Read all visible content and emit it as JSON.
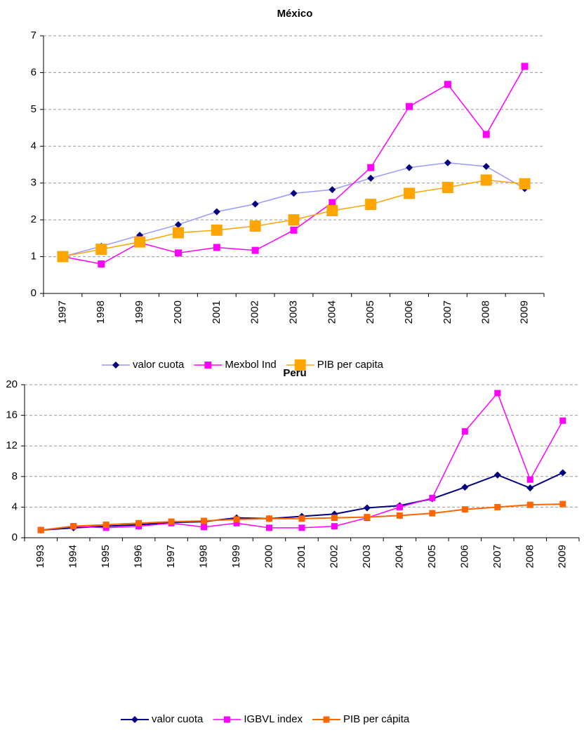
{
  "chart_data": [
    {
      "type": "line",
      "title": "México",
      "categories": [
        "1997",
        "1998",
        "1999",
        "2000",
        "2001",
        "2002",
        "2003",
        "2004",
        "2005",
        "2006",
        "2007",
        "2008",
        "2009"
      ],
      "series": [
        {
          "name": "valor cuota",
          "color": "#9999ff",
          "marker_color": "#000080",
          "marker": "diamond",
          "values": [
            1.0,
            1.28,
            1.58,
            1.87,
            2.22,
            2.43,
            2.72,
            2.82,
            3.13,
            3.42,
            3.55,
            3.45,
            2.85
          ]
        },
        {
          "name": "Mexbol Ind",
          "color": "#ff00ff",
          "marker_color": "#ff00ff",
          "marker": "square",
          "values": [
            1.0,
            0.8,
            1.38,
            1.1,
            1.25,
            1.17,
            1.72,
            2.47,
            3.42,
            5.08,
            5.68,
            4.32,
            6.17
          ]
        },
        {
          "name": "PIB per capita",
          "color": "#ffa500",
          "marker_color": "#ffa500",
          "marker": "square",
          "values": [
            1.0,
            1.2,
            1.4,
            1.65,
            1.72,
            1.83,
            2.0,
            2.25,
            2.42,
            2.72,
            2.88,
            3.08,
            2.98
          ]
        }
      ],
      "ylim": [
        0,
        7
      ],
      "yticks": [
        0,
        1,
        2,
        3,
        4,
        5,
        6,
        7
      ],
      "grid": true,
      "legend": "bottom"
    },
    {
      "type": "line",
      "title": "Perú",
      "categories": [
        "1993",
        "1994",
        "1995",
        "1996",
        "1997",
        "1998",
        "1999",
        "2000",
        "2001",
        "2002",
        "2003",
        "2004",
        "2005",
        "2006",
        "2007",
        "2008",
        "2009"
      ],
      "series": [
        {
          "name": "valor cuota",
          "color": "#000080",
          "marker_color": "#000080",
          "marker": "diamond",
          "values": [
            1.0,
            1.3,
            1.5,
            1.7,
            2.0,
            2.1,
            2.6,
            2.5,
            2.8,
            3.1,
            3.9,
            4.2,
            5.1,
            6.6,
            8.2,
            6.5,
            8.5
          ]
        },
        {
          "name": "IGBVL index",
          "color": "#ff00ff",
          "marker_color": "#ff00ff",
          "marker": "square",
          "values": [
            1.0,
            1.5,
            1.3,
            1.5,
            1.9,
            1.4,
            1.9,
            1.3,
            1.3,
            1.5,
            2.6,
            4.0,
            5.2,
            13.9,
            18.9,
            7.6,
            15.3
          ]
        },
        {
          "name": "PIB per cápita",
          "color": "#ff6600",
          "marker_color": "#ff6600",
          "marker": "square",
          "values": [
            1.0,
            1.5,
            1.7,
            1.9,
            2.1,
            2.2,
            2.4,
            2.5,
            2.5,
            2.6,
            2.7,
            2.9,
            3.2,
            3.7,
            4.0,
            4.3,
            4.4
          ]
        }
      ],
      "ylim": [
        0,
        20
      ],
      "yticks": [
        0,
        4,
        8,
        12,
        16,
        20
      ],
      "grid": true,
      "legend": "bottom"
    }
  ]
}
